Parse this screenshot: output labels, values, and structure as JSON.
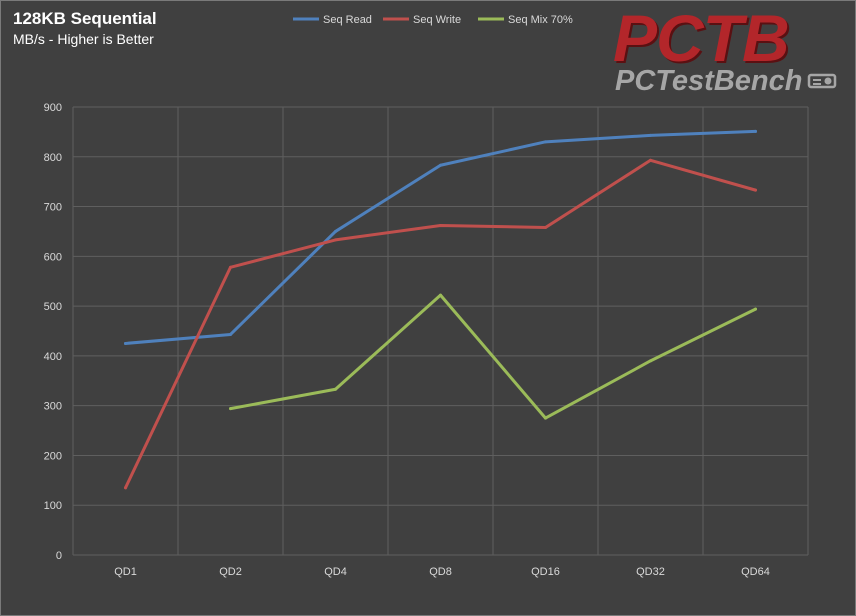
{
  "title": "128KB Sequential",
  "subtitle": "MB/s - Higher is Better",
  "logo": {
    "main": "PCTB",
    "sub": "PCTestBench"
  },
  "colors": {
    "background": "#404040",
    "grid": "#5f5f5f",
    "text": "#d9d9d9",
    "seq_read": "#4f81bd",
    "seq_write": "#c0504d",
    "seq_mix": "#9bbb59"
  },
  "chart_data": {
    "type": "line",
    "title": "128KB Sequential",
    "subtitle": "MB/s - Higher is Better",
    "xlabel": "",
    "ylabel": "",
    "categories": [
      "QD1",
      "QD2",
      "QD4",
      "QD8",
      "QD16",
      "QD32",
      "QD64"
    ],
    "ylim": [
      0,
      900
    ],
    "yticks": [
      0,
      100,
      200,
      300,
      400,
      500,
      600,
      700,
      800,
      900
    ],
    "grid": true,
    "legend": "top",
    "series": [
      {
        "name": "Seq Read",
        "color": "#4f81bd",
        "values": [
          425,
          443,
          650,
          783,
          830,
          843,
          851
        ]
      },
      {
        "name": "Seq Write",
        "color": "#c0504d",
        "values": [
          135,
          578,
          633,
          662,
          658,
          793,
          733
        ]
      },
      {
        "name": "Seq Mix 70%",
        "color": "#9bbb59",
        "values": [
          null,
          294,
          333,
          522,
          275,
          390,
          494
        ]
      }
    ]
  }
}
